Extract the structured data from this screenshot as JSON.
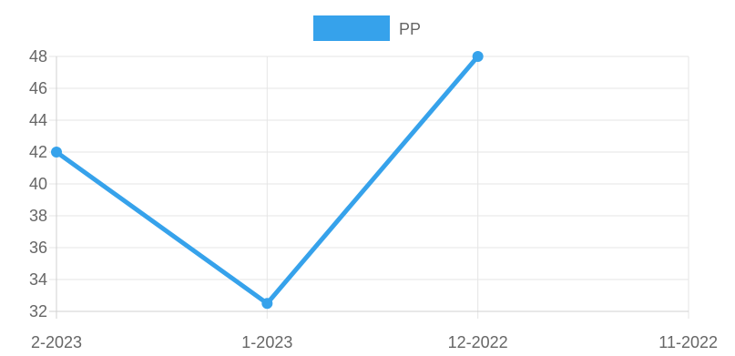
{
  "chart_data": {
    "type": "line",
    "categories": [
      "2-2023",
      "1-2023",
      "12-2022",
      "11-2022"
    ],
    "series": [
      {
        "name": "PP",
        "values": [
          42,
          32.5,
          48,
          null
        ],
        "color": "#36a2eb"
      }
    ],
    "ylim": [
      32,
      48
    ],
    "yticks": [
      32,
      34,
      36,
      38,
      40,
      42,
      44,
      46,
      48
    ],
    "legend": {
      "position": "top"
    },
    "grid": true
  }
}
